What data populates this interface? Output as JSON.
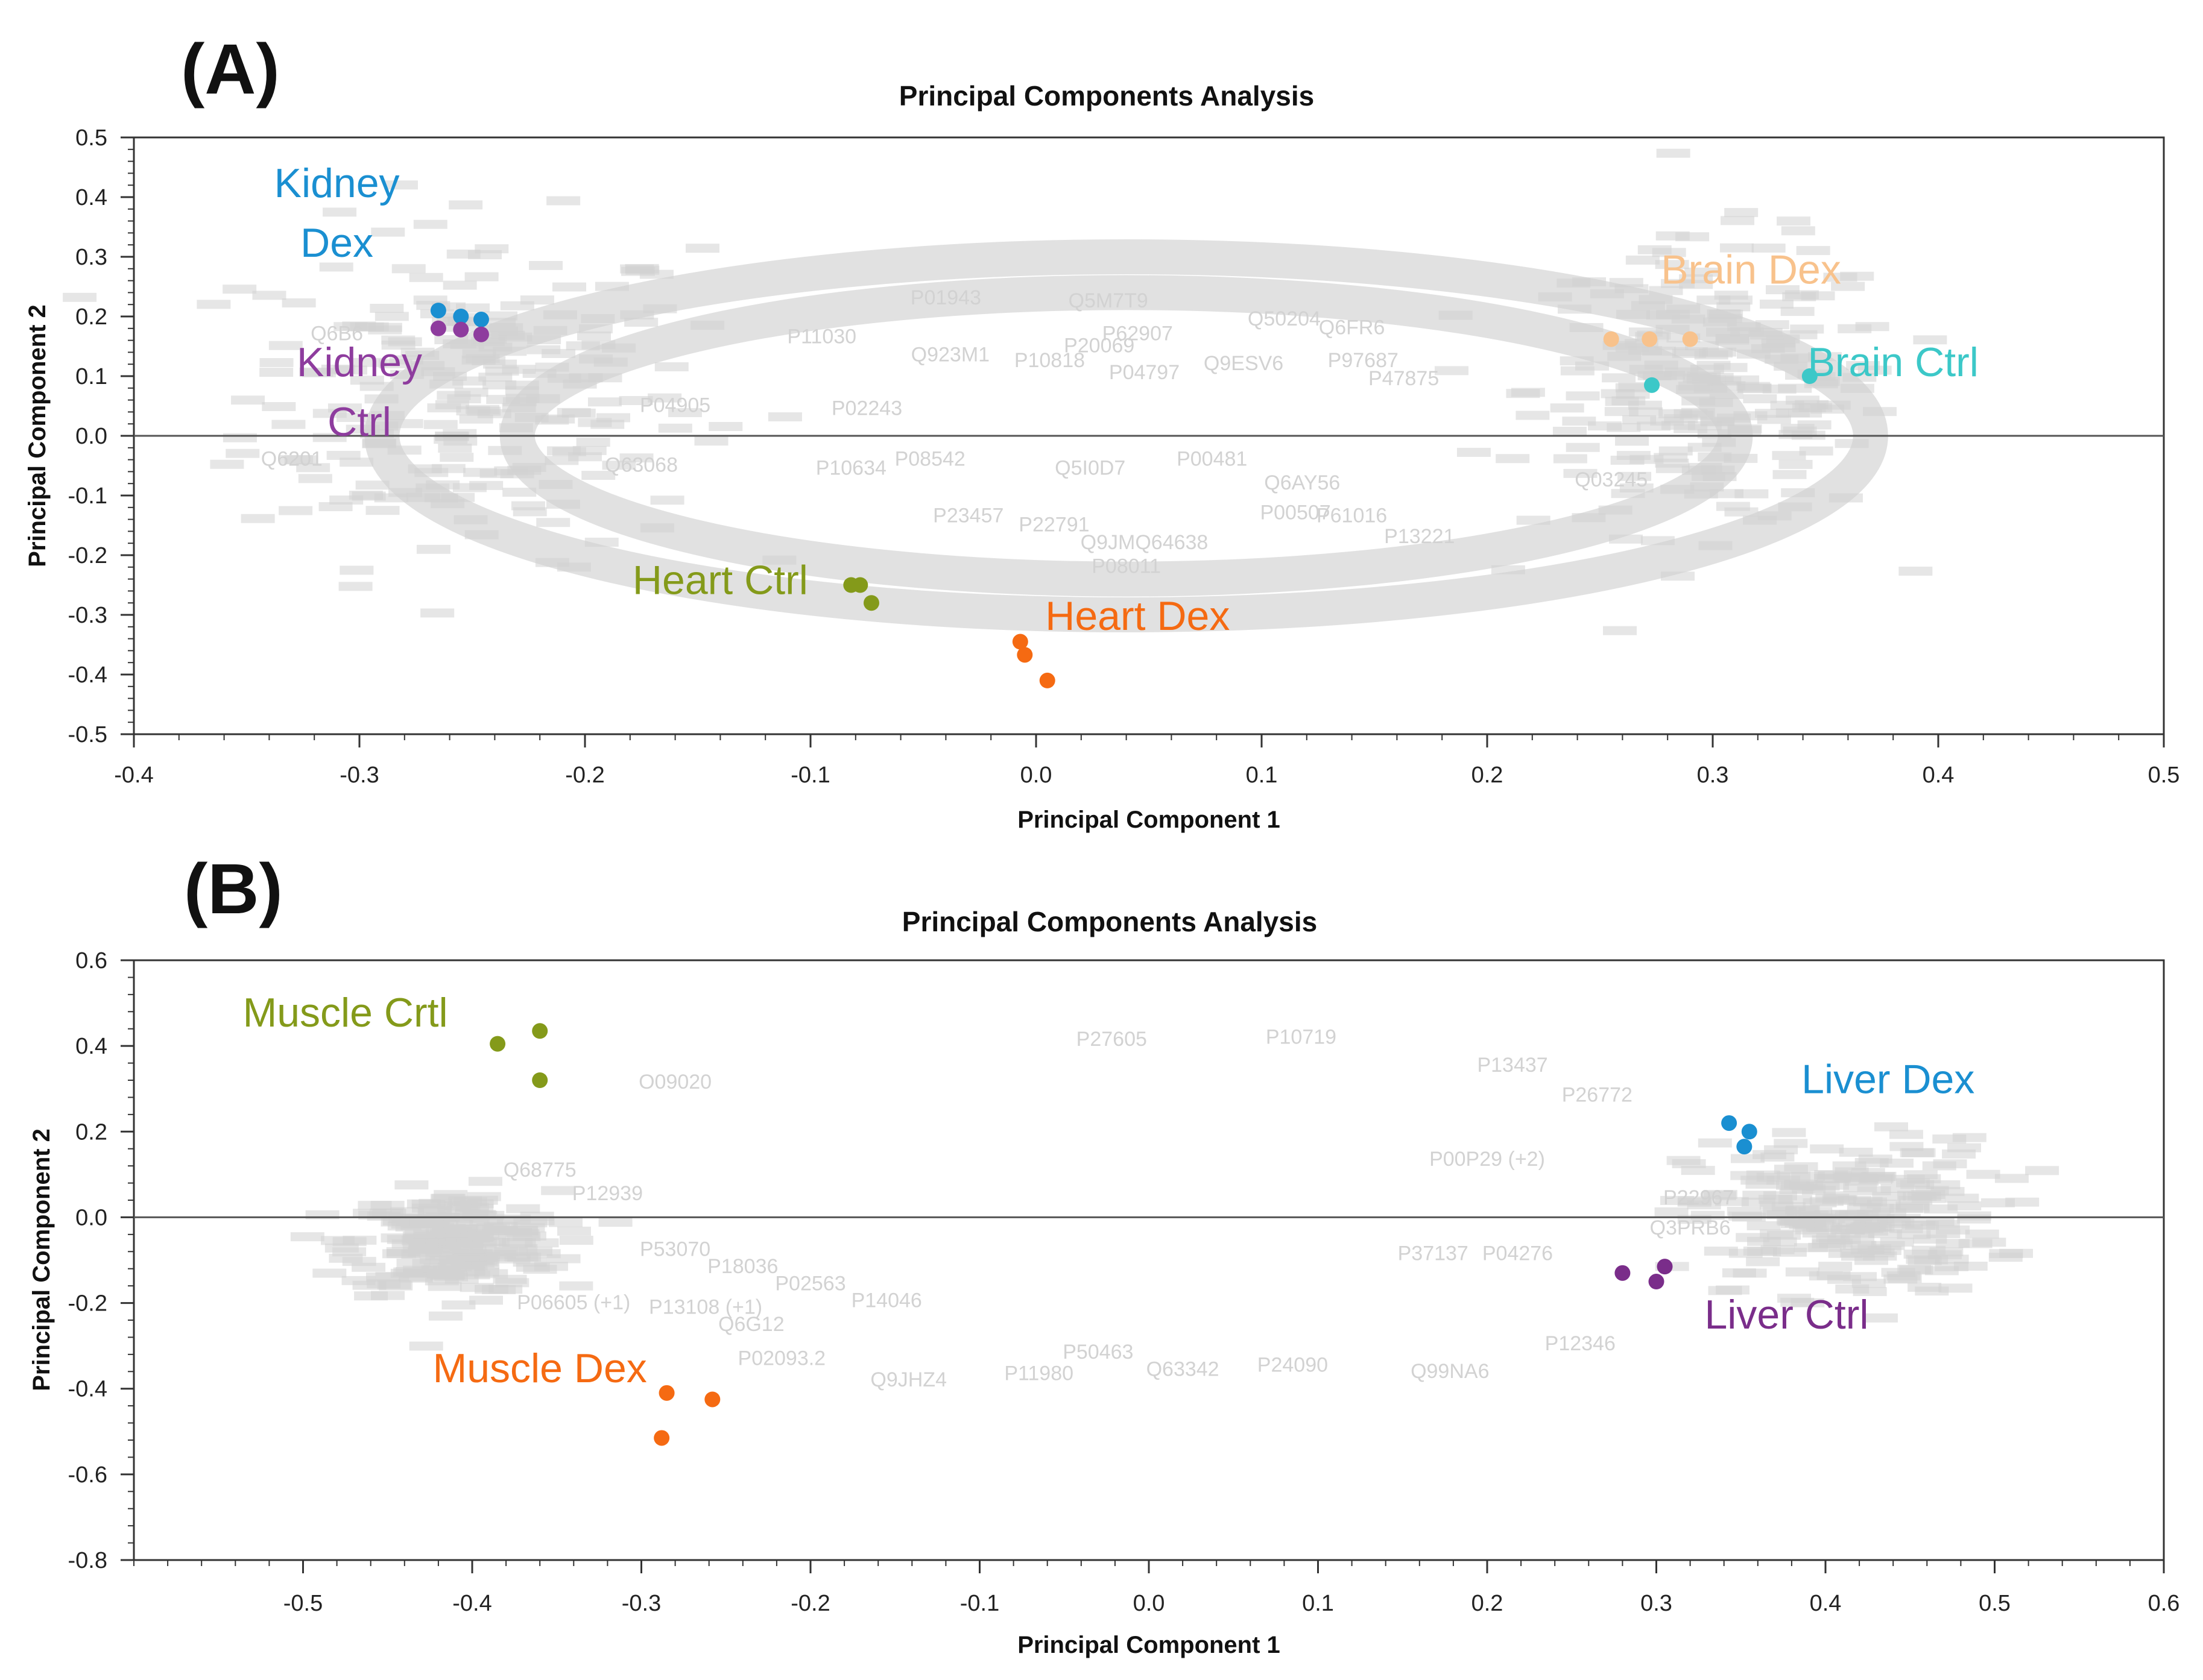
{
  "panels": [
    {
      "panel_label": "(A)",
      "chart_data": {
        "type": "scatter",
        "title": "Principal Components Analysis",
        "xlabel": "Principal Component 1",
        "ylabel": "Principal Component 2",
        "xlim": [
          -0.4,
          0.5
        ],
        "ylim": [
          -0.5,
          0.5
        ],
        "xticks": [
          -0.4,
          -0.3,
          -0.2,
          -0.1,
          0.0,
          0.1,
          0.2,
          0.3,
          0.4,
          0.5
        ],
        "xtick_labels": [
          "-0.4",
          "-0.3",
          "-0.2",
          "-0.1",
          "0.0",
          "0.1",
          "0.2",
          "0.3",
          "0.4",
          "0.5"
        ],
        "yticks": [
          0.5,
          0.4,
          0.3,
          0.2,
          0.1,
          0.0,
          -0.1,
          -0.2,
          -0.3,
          -0.4,
          -0.5
        ],
        "ytick_labels": [
          "0.5",
          "0.4",
          "0.3",
          "0.2",
          "0.1",
          "0.0",
          "-0.1",
          "-0.2",
          "-0.3",
          "-0.4",
          "-0.5"
        ],
        "zero_line": 0.0,
        "series": [
          {
            "name": "Kidney Dex",
            "color": "#1a8fd1",
            "x": [
              -0.265,
              -0.255,
              -0.246
            ],
            "y": [
              0.21,
              0.2,
              0.195
            ]
          },
          {
            "name": "Kidney Ctrl",
            "color": "#8e3c9e",
            "x": [
              -0.265,
              -0.255,
              -0.246
            ],
            "y": [
              0.18,
              0.178,
              0.17
            ]
          },
          {
            "name": "Brain Dex",
            "color": "#f8c28c",
            "x": [
              0.255,
              0.272,
              0.29
            ],
            "y": [
              0.162,
              0.162,
              0.162
            ]
          },
          {
            "name": "Brain Ctrl",
            "color": "#3cc8c8",
            "x": [
              0.273,
              0.343
            ],
            "y": [
              0.085,
              0.1
            ]
          },
          {
            "name": "Heart Ctrl",
            "color": "#849a1a",
            "x": [
              -0.082,
              -0.078,
              -0.073
            ],
            "y": [
              -0.25,
              -0.25,
              -0.28
            ]
          },
          {
            "name": "Heart Dex",
            "color": "#f56a12",
            "x": [
              -0.007,
              -0.005,
              0.005
            ],
            "y": [
              -0.345,
              -0.367,
              -0.41
            ]
          }
        ],
        "annotations": [
          {
            "text": "Kidney",
            "color": "#1a8fd1",
            "x": -0.31,
            "y": 0.4
          },
          {
            "text": "Dex",
            "color": "#1a8fd1",
            "x": -0.31,
            "y": 0.3
          },
          {
            "text": "Kidney",
            "color": "#8e3c9e",
            "x": -0.3,
            "y": 0.1
          },
          {
            "text": "Ctrl",
            "color": "#8e3c9e",
            "x": -0.3,
            "y": 0.0
          },
          {
            "text": "Brain Dex",
            "color": "#f8c28c",
            "x": 0.317,
            "y": 0.255
          },
          {
            "text": "Brain Ctrl",
            "color": "#3cc8c8",
            "x": 0.38,
            "y": 0.1
          },
          {
            "text": "Heart Ctrl",
            "color": "#849a1a",
            "x": -0.14,
            "y": -0.265
          },
          {
            "text": "Heart Dex",
            "color": "#f56a12",
            "x": 0.045,
            "y": -0.325
          }
        ],
        "background": {
          "label_color": "#d2d2d2",
          "rings": [
            {
              "cx": 0.04,
              "cy": 0.0,
              "rx": 0.33,
              "ry": 0.3
            },
            {
              "cx": 0.04,
              "cy": 0.0,
              "rx": 0.27,
              "ry": 0.24
            }
          ],
          "clusters": [
            {
              "cx": -0.25,
              "cy": 0.07,
              "sx": 0.05,
              "sy": 0.14,
              "n": 240
            },
            {
              "cx": 0.3,
              "cy": 0.08,
              "sx": 0.04,
              "sy": 0.12,
              "n": 240
            }
          ],
          "labels": [
            {
              "text": "Q923M1",
              "x": -0.038,
              "y": 0.125
            },
            {
              "text": "P10818",
              "x": 0.006,
              "y": 0.115
            },
            {
              "text": "P04797",
              "x": 0.048,
              "y": 0.095
            },
            {
              "text": "Q9ESV6",
              "x": 0.092,
              "y": 0.11
            },
            {
              "text": "Q5M7T9",
              "x": 0.032,
              "y": 0.215
            },
            {
              "text": "P01943",
              "x": -0.04,
              "y": 0.22
            },
            {
              "text": "P20069",
              "x": 0.028,
              "y": 0.14
            },
            {
              "text": "P62907",
              "x": 0.045,
              "y": 0.16
            },
            {
              "text": "Q50204",
              "x": 0.11,
              "y": 0.185
            },
            {
              "text": "P10634",
              "x": -0.082,
              "y": -0.065
            },
            {
              "text": "P08542",
              "x": -0.047,
              "y": -0.05
            },
            {
              "text": "Q5I0D7",
              "x": 0.024,
              "y": -0.065
            },
            {
              "text": "P00481",
              "x": 0.078,
              "y": -0.05
            },
            {
              "text": "Q6AY56",
              "x": 0.118,
              "y": -0.09
            },
            {
              "text": "P22791",
              "x": 0.008,
              "y": -0.16
            },
            {
              "text": "Q9JMQ64638",
              "x": 0.048,
              "y": -0.19
            },
            {
              "text": "P08011",
              "x": 0.04,
              "y": -0.23
            },
            {
              "text": "P00507",
              "x": 0.115,
              "y": -0.14
            },
            {
              "text": "P23457",
              "x": -0.03,
              "y": -0.145
            },
            {
              "text": "P02243",
              "x": -0.075,
              "y": 0.035
            },
            {
              "text": "P11030",
              "x": -0.095,
              "y": 0.155
            },
            {
              "text": "P04905",
              "x": -0.16,
              "y": 0.04
            },
            {
              "text": "Q63068",
              "x": -0.175,
              "y": -0.06
            },
            {
              "text": "P97687",
              "x": 0.145,
              "y": 0.115
            },
            {
              "text": "P47875",
              "x": 0.163,
              "y": 0.085
            },
            {
              "text": "P61016",
              "x": 0.14,
              "y": -0.145
            },
            {
              "text": "P13221",
              "x": 0.17,
              "y": -0.18
            },
            {
              "text": "Q03245",
              "x": 0.255,
              "y": -0.085
            },
            {
              "text": "Q6FR6",
              "x": 0.14,
              "y": 0.17
            },
            {
              "text": "Q6B6",
              "x": -0.31,
              "y": 0.16
            },
            {
              "text": "Q6201",
              "x": -0.33,
              "y": -0.05
            }
          ]
        }
      }
    },
    {
      "panel_label": "(B)",
      "chart_data": {
        "type": "scatter",
        "title": "Principal Components Analysis",
        "xlabel": "Principal Component 1",
        "ylabel": "Principal Component 2",
        "xlim": [
          -0.6,
          0.6
        ],
        "ylim": [
          -0.8,
          0.6
        ],
        "xticks": [
          -0.5,
          -0.4,
          -0.3,
          -0.2,
          -0.1,
          0.0,
          0.1,
          0.2,
          0.3,
          0.4,
          0.5,
          0.6
        ],
        "xtick_labels": [
          "-0.5",
          "-0.4",
          "-0.3",
          "-0.2",
          "-0.1",
          "0.0",
          "0.1",
          "0.2",
          "0.3",
          "0.4",
          "0.5",
          "0.6"
        ],
        "yticks": [
          0.6,
          0.4,
          0.2,
          0.0,
          -0.2,
          -0.4,
          -0.6,
          -0.8
        ],
        "ytick_labels": [
          "0.6",
          "0.4",
          "0.2",
          "0.0",
          "-0.2",
          "-0.4",
          "-0.6",
          "-0.8"
        ],
        "zero_line": 0.0,
        "series": [
          {
            "name": "Muscle Crtl",
            "color": "#849a1a",
            "x": [
              -0.385,
              -0.36,
              -0.36
            ],
            "y": [
              0.405,
              0.435,
              0.32
            ]
          },
          {
            "name": "Muscle Dex",
            "color": "#f56a12",
            "x": [
              -0.285,
              -0.288,
              -0.258
            ],
            "y": [
              -0.41,
              -0.515,
              -0.425
            ]
          },
          {
            "name": "Liver Dex",
            "color": "#1a8fd1",
            "x": [
              0.343,
              0.355,
              0.352
            ],
            "y": [
              0.22,
              0.2,
              0.165
            ]
          },
          {
            "name": "Liver Ctrl",
            "color": "#7a2d8a",
            "x": [
              0.28,
              0.3,
              0.305
            ],
            "y": [
              -0.13,
              -0.15,
              -0.115
            ]
          }
        ],
        "annotations": [
          {
            "text": "Muscle Crtl",
            "color": "#849a1a",
            "x": -0.475,
            "y": 0.445
          },
          {
            "text": "Muscle Dex",
            "color": "#f56a12",
            "x": -0.36,
            "y": -0.385
          },
          {
            "text": "Liver Dex",
            "color": "#1a8fd1",
            "x": 0.437,
            "y": 0.29
          },
          {
            "text": "Liver Ctrl",
            "color": "#7a2d8a",
            "x": 0.377,
            "y": -0.26
          }
        ],
        "background": {
          "label_color": "#d2d2d2",
          "rings": [],
          "clusters": [
            {
              "cx": -0.41,
              "cy": -0.06,
              "sx": 0.03,
              "sy": 0.06,
              "n": 240
            },
            {
              "cx": 0.41,
              "cy": 0.0,
              "sx": 0.045,
              "sy": 0.09,
              "n": 260
            }
          ],
          "labels": [
            {
              "text": "P27605",
              "x": -0.022,
              "y": 0.4
            },
            {
              "text": "P10719",
              "x": 0.09,
              "y": 0.405
            },
            {
              "text": "O09020",
              "x": -0.28,
              "y": 0.3
            },
            {
              "text": "P13437",
              "x": 0.215,
              "y": 0.34
            },
            {
              "text": "P26772",
              "x": 0.265,
              "y": 0.27
            },
            {
              "text": "P00P29 (+2)",
              "x": 0.2,
              "y": 0.12
            },
            {
              "text": "Q68775",
              "x": -0.36,
              "y": 0.095
            },
            {
              "text": "P12939",
              "x": -0.32,
              "y": 0.04
            },
            {
              "text": "P53070",
              "x": -0.28,
              "y": -0.09
            },
            {
              "text": "P18036",
              "x": -0.24,
              "y": -0.13
            },
            {
              "text": "P02563",
              "x": -0.2,
              "y": -0.17
            },
            {
              "text": "P14046",
              "x": -0.155,
              "y": -0.21
            },
            {
              "text": "P06605 (+1)",
              "x": -0.34,
              "y": -0.215
            },
            {
              "text": "P13108 (+1)",
              "x": -0.262,
              "y": -0.225
            },
            {
              "text": "Q6G12",
              "x": -0.235,
              "y": -0.265
            },
            {
              "text": "P02093.2",
              "x": -0.217,
              "y": -0.345
            },
            {
              "text": "Q9JHZ4",
              "x": -0.142,
              "y": -0.395
            },
            {
              "text": "P11980",
              "x": -0.065,
              "y": -0.38
            },
            {
              "text": "P50463",
              "x": -0.03,
              "y": -0.33
            },
            {
              "text": "Q63342",
              "x": 0.02,
              "y": -0.37
            },
            {
              "text": "P24090",
              "x": 0.085,
              "y": -0.36
            },
            {
              "text": "Q99NA6",
              "x": 0.178,
              "y": -0.375
            },
            {
              "text": "P37137",
              "x": 0.168,
              "y": -0.1
            },
            {
              "text": "P04276",
              "x": 0.218,
              "y": -0.1
            },
            {
              "text": "P22967",
              "x": 0.325,
              "y": 0.03
            },
            {
              "text": "Q3PRB6",
              "x": 0.32,
              "y": -0.04
            },
            {
              "text": "P12346",
              "x": 0.255,
              "y": -0.31
            }
          ]
        }
      }
    }
  ]
}
